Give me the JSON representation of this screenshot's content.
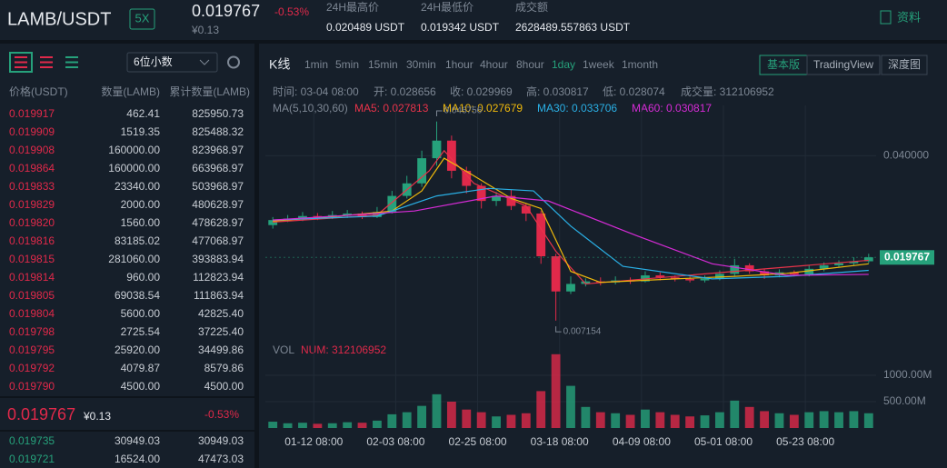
{
  "header": {
    "pair": "LAMB/USDT",
    "leverage": "5X",
    "price": "0.019767",
    "change": "-0.53%",
    "cny": "¥0.13",
    "stats": [
      {
        "label": "24H最高价",
        "value": "0.020489 USDT"
      },
      {
        "label": "24H最低价",
        "value": "0.019342 USDT"
      },
      {
        "label": "成交额",
        "value": "2628489.557863 USDT"
      }
    ],
    "info_link": "资料"
  },
  "order_book": {
    "precision": "6位小数",
    "columns": [
      "价格(USDT)",
      "数量(LAMB)",
      "累计数量(LAMB)"
    ],
    "asks": [
      [
        "0.019917",
        "462.41",
        "825950.73"
      ],
      [
        "0.019909",
        "1519.35",
        "825488.32"
      ],
      [
        "0.019908",
        "160000.00",
        "823968.97"
      ],
      [
        "0.019864",
        "160000.00",
        "663968.97"
      ],
      [
        "0.019833",
        "23340.00",
        "503968.97"
      ],
      [
        "0.019829",
        "2000.00",
        "480628.97"
      ],
      [
        "0.019820",
        "1560.00",
        "478628.97"
      ],
      [
        "0.019816",
        "83185.02",
        "477068.97"
      ],
      [
        "0.019815",
        "281060.00",
        "393883.94"
      ],
      [
        "0.019814",
        "960.00",
        "112823.94"
      ],
      [
        "0.019805",
        "69038.54",
        "111863.94"
      ],
      [
        "0.019804",
        "5600.00",
        "42825.40"
      ],
      [
        "0.019798",
        "2725.54",
        "37225.40"
      ],
      [
        "0.019795",
        "25920.00",
        "34499.86"
      ],
      [
        "0.019792",
        "4079.87",
        "8579.86"
      ],
      [
        "0.019790",
        "4500.00",
        "4500.00"
      ]
    ],
    "last": {
      "price": "0.019767",
      "cny": "¥0.13",
      "change": "-0.53%"
    },
    "bids": [
      [
        "0.019735",
        "30949.03",
        "30949.03"
      ],
      [
        "0.019721",
        "16524.00",
        "47473.03"
      ]
    ]
  },
  "toolbar": {
    "title": "K线",
    "intervals": [
      "1min",
      "5min",
      "15min",
      "30min",
      "1hour",
      "4hour",
      "8hour",
      "1day",
      "1week",
      "1month"
    ],
    "active": "1day",
    "views": [
      "基本版",
      "TradingView",
      "深度图"
    ],
    "active_view": "基本版"
  },
  "info": {
    "time": "时间: 03-04 08:00",
    "open": "开: 0.028656",
    "close": "收: 0.029969",
    "high": "高: 0.030817",
    "low": "低: 0.028074",
    "volume": "成交量: 312106952"
  },
  "ma_legend": {
    "label": "MA(5,10,30,60)",
    "items": [
      {
        "text": "MA5: 0.027813",
        "color": "#e8334a"
      },
      {
        "text": "MA10: 0.027679",
        "color": "#f0b90b"
      },
      {
        "text": "MA30: 0.033706",
        "color": "#2ab0e6"
      },
      {
        "text": "MA60: 0.030817",
        "color": "#d62bd6"
      }
    ]
  },
  "chart_data": {
    "type": "candlestick",
    "up_color": "#26a17b",
    "down_color": "#e0294a",
    "x": [
      2,
      6,
      10,
      14,
      18,
      22,
      26,
      30,
      34,
      38,
      42,
      46,
      50,
      54,
      58,
      62,
      66,
      70,
      74,
      78,
      82,
      86,
      90,
      94,
      98,
      102,
      106,
      110,
      114,
      118,
      122,
      126,
      130,
      134,
      138,
      142,
      146,
      150,
      154,
      158,
      162
    ],
    "open": [
      0.0262,
      0.0272,
      0.0275,
      0.028,
      0.0278,
      0.0282,
      0.0285,
      0.0278,
      0.0288,
      0.032,
      0.0345,
      0.0395,
      0.043,
      0.037,
      0.034,
      0.031,
      0.032,
      0.03,
      0.0285,
      0.02,
      0.013,
      0.0145,
      0.015,
      0.0148,
      0.0152,
      0.015,
      0.0162,
      0.0158,
      0.0155,
      0.0152,
      0.0156,
      0.0165,
      0.0182,
      0.017,
      0.0162,
      0.0168,
      0.0164,
      0.0175,
      0.0182,
      0.0186,
      0.019
    ],
    "close": [
      0.0272,
      0.0275,
      0.028,
      0.0278,
      0.0282,
      0.0285,
      0.0278,
      0.0288,
      0.032,
      0.0345,
      0.0395,
      0.043,
      0.037,
      0.034,
      0.031,
      0.032,
      0.03,
      0.0285,
      0.02,
      0.013,
      0.0145,
      0.015,
      0.0148,
      0.0152,
      0.015,
      0.0162,
      0.0158,
      0.0155,
      0.0152,
      0.0156,
      0.0165,
      0.0182,
      0.017,
      0.0162,
      0.0168,
      0.0164,
      0.0175,
      0.0182,
      0.0186,
      0.019,
      0.0198
    ],
    "high": [
      0.0278,
      0.0282,
      0.0288,
      0.0286,
      0.029,
      0.0292,
      0.0289,
      0.0298,
      0.033,
      0.036,
      0.041,
      0.0468,
      0.044,
      0.0378,
      0.0345,
      0.0328,
      0.0332,
      0.0305,
      0.029,
      0.0205,
      0.016,
      0.0156,
      0.0158,
      0.016,
      0.0158,
      0.017,
      0.0168,
      0.0162,
      0.016,
      0.0162,
      0.0172,
      0.0195,
      0.0186,
      0.0174,
      0.0174,
      0.0172,
      0.0182,
      0.0188,
      0.0192,
      0.0198,
      0.0205
    ],
    "low": [
      0.0255,
      0.0268,
      0.027,
      0.0272,
      0.0274,
      0.0276,
      0.0274,
      0.0276,
      0.0285,
      0.0315,
      0.0338,
      0.038,
      0.0355,
      0.0325,
      0.0295,
      0.03,
      0.0292,
      0.027,
      0.0185,
      0.0072,
      0.0125,
      0.014,
      0.0142,
      0.0144,
      0.0145,
      0.0148,
      0.0152,
      0.015,
      0.0148,
      0.0148,
      0.0152,
      0.016,
      0.0165,
      0.0155,
      0.0158,
      0.016,
      0.016,
      0.017,
      0.0178,
      0.0182,
      0.0186
    ],
    "volume": [
      120,
      90,
      100,
      80,
      90,
      110,
      100,
      140,
      260,
      300,
      420,
      640,
      500,
      350,
      300,
      220,
      250,
      280,
      700,
      1400,
      800,
      400,
      300,
      280,
      250,
      350,
      300,
      250,
      220,
      240,
      300,
      520,
      400,
      320,
      280,
      250,
      300,
      320,
      300,
      320,
      280
    ],
    "ma_lines": [
      {
        "name": "MA5",
        "color": "#e8334a",
        "x": [
          2,
          30,
          44,
          48,
          56,
          70,
          78,
          86,
          126,
          162
        ],
        "values": [
          0.0268,
          0.0282,
          0.037,
          0.041,
          0.0345,
          0.03,
          0.021,
          0.0145,
          0.017,
          0.0192
        ]
      },
      {
        "name": "MA10",
        "color": "#f0b90b",
        "x": [
          2,
          20,
          34,
          42,
          48,
          56,
          66,
          74,
          82,
          90,
          110,
          126,
          140,
          162
        ],
        "values": [
          0.027,
          0.028,
          0.029,
          0.033,
          0.0395,
          0.036,
          0.0315,
          0.0295,
          0.017,
          0.0148,
          0.0155,
          0.016,
          0.0166,
          0.0185
        ]
      },
      {
        "name": "MA30",
        "color": "#2ab0e6",
        "x": [
          2,
          30,
          46,
          60,
          72,
          82,
          96,
          120,
          140,
          162
        ],
        "values": [
          0.0272,
          0.028,
          0.032,
          0.0335,
          0.033,
          0.026,
          0.018,
          0.0155,
          0.016,
          0.0172
        ]
      },
      {
        "name": "MA60",
        "color": "#d62bd6",
        "x": [
          2,
          40,
          62,
          76,
          100,
          120,
          140,
          162
        ],
        "values": [
          0.0272,
          0.029,
          0.032,
          0.031,
          0.024,
          0.0185,
          0.0162,
          0.0164
        ]
      }
    ],
    "xlim": [
      0,
      164
    ],
    "ylim": [
      0.005,
      0.05
    ],
    "yticks": [
      {
        "value": 0.04,
        "label": "0.040000"
      }
    ],
    "xticks": [
      {
        "value": 13,
        "label": "01-12 08:00"
      },
      {
        "value": 35,
        "label": "02-03 08:00"
      },
      {
        "value": 57,
        "label": "02-25 08:00"
      },
      {
        "value": 79,
        "label": "03-18 08:00"
      },
      {
        "value": 101,
        "label": "04-09 08:00"
      },
      {
        "value": 123,
        "label": "05-01 08:00"
      },
      {
        "value": 145,
        "label": "05-23 08:00"
      }
    ],
    "high_marker": {
      "x": 46,
      "value": 0.046756
    },
    "low_marker": {
      "x": 78,
      "value": 0.007154
    },
    "last_price": 0.019767,
    "volume_title": "VOL",
    "volume_num": "NUM: 312106952",
    "volume_ylim": [
      0,
      1500
    ],
    "volume_yticks": [
      {
        "value": 500,
        "label": "500.00M"
      },
      {
        "value": 1000,
        "label": "1000.00M"
      }
    ]
  }
}
